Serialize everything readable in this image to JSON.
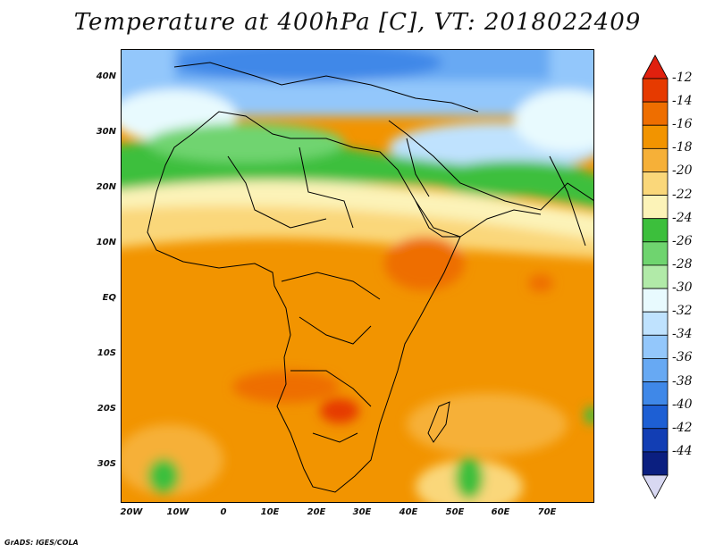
{
  "title": "Temperature at 400hPa [C], VT: 2018022409",
  "credit": "GrADS: IGES/COLA",
  "lat_labels": [
    "40N",
    "30N",
    "20N",
    "10N",
    "EQ",
    "10S",
    "20S",
    "30S"
  ],
  "lon_labels": [
    "20W",
    "10W",
    "0",
    "10E",
    "20E",
    "30E",
    "40E",
    "50E",
    "60E",
    "70E"
  ],
  "colorbar": {
    "labels": [
      "-12",
      "-14",
      "-16",
      "-18",
      "-20",
      "-22",
      "-24",
      "-26",
      "-28",
      "-30",
      "-32",
      "-34",
      "-36",
      "-38",
      "-40",
      "-42",
      "-44"
    ],
    "colors": [
      "#e63a00",
      "#ee6e00",
      "#f29400",
      "#f6b038",
      "#fad77a",
      "#fcf3b8",
      "#3cbf3c",
      "#6fd46f",
      "#b1eaa8",
      "#e8fafe",
      "#bfe2fe",
      "#93c7fb",
      "#67a9f3",
      "#3f88e8",
      "#1d5fd4",
      "#123eb4",
      "#0b1f80"
    ],
    "top_arrow_color": "#e0200e",
    "bottom_arrow_color": "#d8d8f2"
  }
}
